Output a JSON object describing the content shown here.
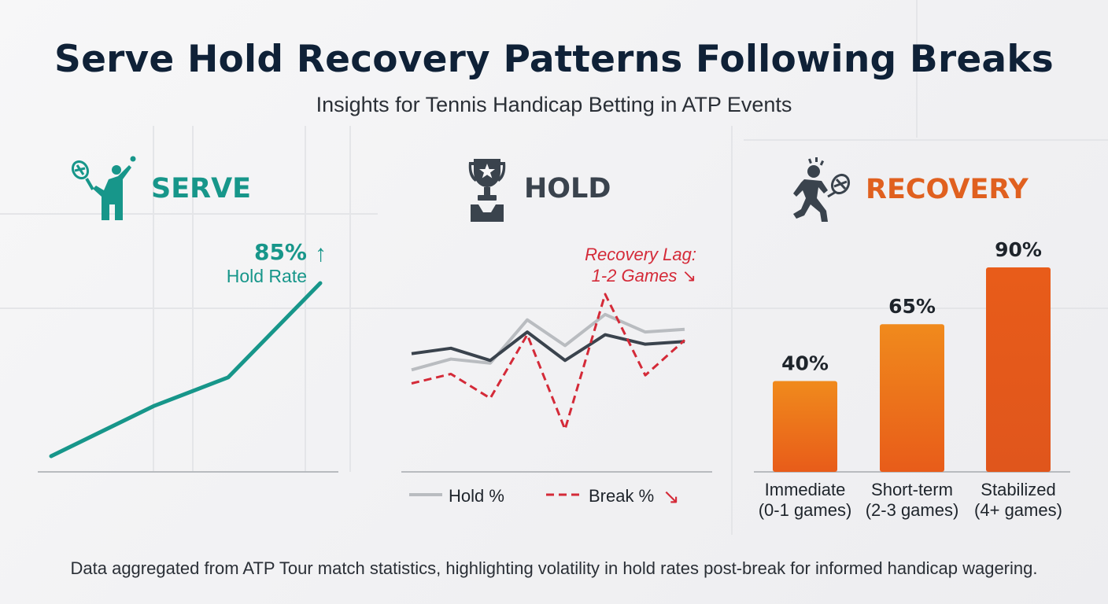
{
  "title": "Serve Hold Recovery Patterns Following Breaks",
  "subtitle": "Insights for Tennis Handicap Betting in ATP Events",
  "footer": "Data aggregated from ATP Tour match statistics, highlighting volatility in hold rates post-break for informed handicap wagering.",
  "colors": {
    "serve": "#17968a",
    "hold_dark": "#3a434d",
    "hold_light": "#b9bcc0",
    "break": "#d42a38",
    "recovery": "#e0601f",
    "bar_top": "#f08a1c",
    "bar_bottom": "#e85c1a",
    "title": "#0f2137"
  },
  "panels": {
    "serve": {
      "label": "SERVE",
      "icon": "tennis-player-serve-icon"
    },
    "hold": {
      "label": "HOLD",
      "icon": "trophy-icon"
    },
    "recovery": {
      "label": "RECOVERY",
      "icon": "fatigued-player-icon"
    }
  },
  "chart_data": [
    {
      "type": "line",
      "panel": "serve",
      "series": [
        {
          "values": [
            10,
            36,
            51,
            100
          ]
        }
      ],
      "annotation": {
        "value": "85%",
        "text": "Hold Rate",
        "arrow": "↑"
      }
    },
    {
      "type": "line",
      "panel": "hold",
      "series": [
        {
          "name": "Hold %",
          "style": "light-solid",
          "values": [
            44,
            52,
            49,
            81,
            62,
            85,
            72,
            74
          ]
        },
        {
          "style": "dark-solid",
          "values": [
            56,
            60,
            51,
            72,
            51,
            70,
            63,
            65
          ]
        },
        {
          "name": "Break %",
          "style": "dashed",
          "values": [
            34,
            41,
            23,
            70,
            0,
            100,
            40,
            66
          ]
        }
      ],
      "annotation": {
        "line1": "Recovery Lag:",
        "line2": "1-2 Games",
        "arrow": "↘"
      },
      "legend_break_arrow": "↘"
    },
    {
      "type": "bar",
      "panel": "recovery",
      "categories": [
        {
          "line1": "Immediate",
          "line2": "(0-1 games)"
        },
        {
          "line1": "Short-term",
          "line2": "(2-3 games)"
        },
        {
          "line1": "Stabilized",
          "line2": "(4+ games)"
        }
      ],
      "values": [
        40,
        65,
        90
      ],
      "value_labels": [
        "40%",
        "65%",
        "90%"
      ]
    }
  ]
}
